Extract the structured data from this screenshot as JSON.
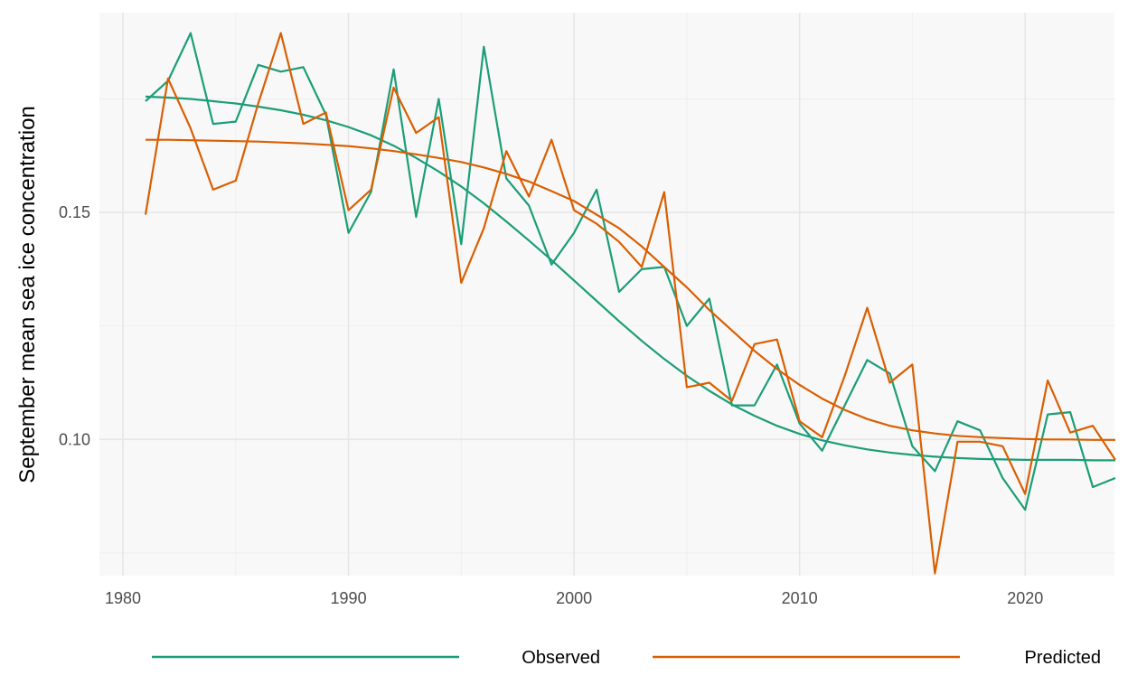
{
  "chart_data": {
    "type": "line",
    "title": "",
    "xlabel": "",
    "ylabel": "September mean sea ice concentration",
    "xlim": [
      1980,
      2025
    ],
    "ylim": [
      0.07,
      0.194
    ],
    "x_ticks": [
      1980,
      1990,
      2000,
      2010,
      2020
    ],
    "y_ticks": [
      0.1,
      0.15
    ],
    "y_tick_labels": [
      "0.10",
      "0.15"
    ],
    "grid": true,
    "legend_position": "bottom",
    "background": "#f8f8f8",
    "x": [
      1981,
      1982,
      1983,
      1984,
      1985,
      1986,
      1987,
      1988,
      1989,
      1990,
      1991,
      1992,
      1993,
      1994,
      1995,
      1996,
      1997,
      1998,
      1999,
      2000,
      2001,
      2002,
      2003,
      2004,
      2005,
      2006,
      2007,
      2008,
      2009,
      2010,
      2011,
      2012,
      2013,
      2014,
      2015,
      2016,
      2017,
      2018,
      2019,
      2020,
      2021,
      2022,
      2023,
      2024
    ],
    "series": [
      {
        "name": "Observed",
        "color": "#1b9e77",
        "values": [
          0.1745,
          0.179,
          0.1895,
          0.1695,
          0.17,
          0.1825,
          0.181,
          0.182,
          0.1715,
          0.1455,
          0.1545,
          0.1815,
          0.149,
          0.175,
          0.143,
          0.1865,
          0.1575,
          0.1515,
          0.1385,
          0.1455,
          0.155,
          0.1325,
          0.1375,
          0.138,
          0.125,
          0.131,
          0.1075,
          0.1075,
          0.1165,
          0.1035,
          0.0975,
          0.1075,
          0.1175,
          0.1145,
          0.0985,
          0.093,
          0.104,
          0.102,
          0.0915,
          0.0845,
          0.1055,
          0.106,
          0.0895,
          0.0915
        ],
        "smooth": [
          0.1755,
          0.1753,
          0.175,
          0.1745,
          0.174,
          0.1733,
          0.1725,
          0.1715,
          0.1703,
          0.1688,
          0.167,
          0.1647,
          0.162,
          0.159,
          0.1557,
          0.152,
          0.148,
          0.1438,
          0.1395,
          0.135,
          0.1305,
          0.126,
          0.1217,
          0.1177,
          0.114,
          0.1107,
          0.1077,
          0.1052,
          0.103,
          0.1012,
          0.0998,
          0.0987,
          0.0978,
          0.0971,
          0.0966,
          0.0962,
          0.0959,
          0.0957,
          0.0956,
          0.0955,
          0.0955,
          0.0955,
          0.0954,
          0.0954
        ]
      },
      {
        "name": "Predicted",
        "color": "#d95f02",
        "values": [
          0.1495,
          0.1795,
          0.1685,
          0.155,
          0.157,
          0.174,
          0.1895,
          0.1695,
          0.172,
          0.1505,
          0.155,
          0.1775,
          0.1675,
          0.171,
          0.1345,
          0.1465,
          0.1635,
          0.1535,
          0.166,
          0.1505,
          0.1475,
          0.1435,
          0.138,
          0.1545,
          0.1115,
          0.1125,
          0.1085,
          0.121,
          0.122,
          0.104,
          0.1005,
          0.114,
          0.129,
          0.1125,
          0.1165,
          0.0705,
          0.0995,
          0.0995,
          0.0985,
          0.088,
          0.113,
          0.1015,
          0.103,
          0.0955
        ],
        "smooth": [
          0.166,
          0.166,
          0.1659,
          0.1658,
          0.1657,
          0.1656,
          0.1654,
          0.1652,
          0.1649,
          0.1646,
          0.1641,
          0.1635,
          0.1628,
          0.162,
          0.1611,
          0.1599,
          0.1585,
          0.1568,
          0.1547,
          0.1525,
          0.1495,
          0.1465,
          0.1425,
          0.138,
          0.1335,
          0.1285,
          0.124,
          0.1195,
          0.1155,
          0.112,
          0.109,
          0.1065,
          0.1045,
          0.103,
          0.102,
          0.1013,
          0.1008,
          0.1005,
          0.1003,
          0.1001,
          0.1,
          0.1,
          0.0999,
          0.0999
        ]
      }
    ]
  }
}
